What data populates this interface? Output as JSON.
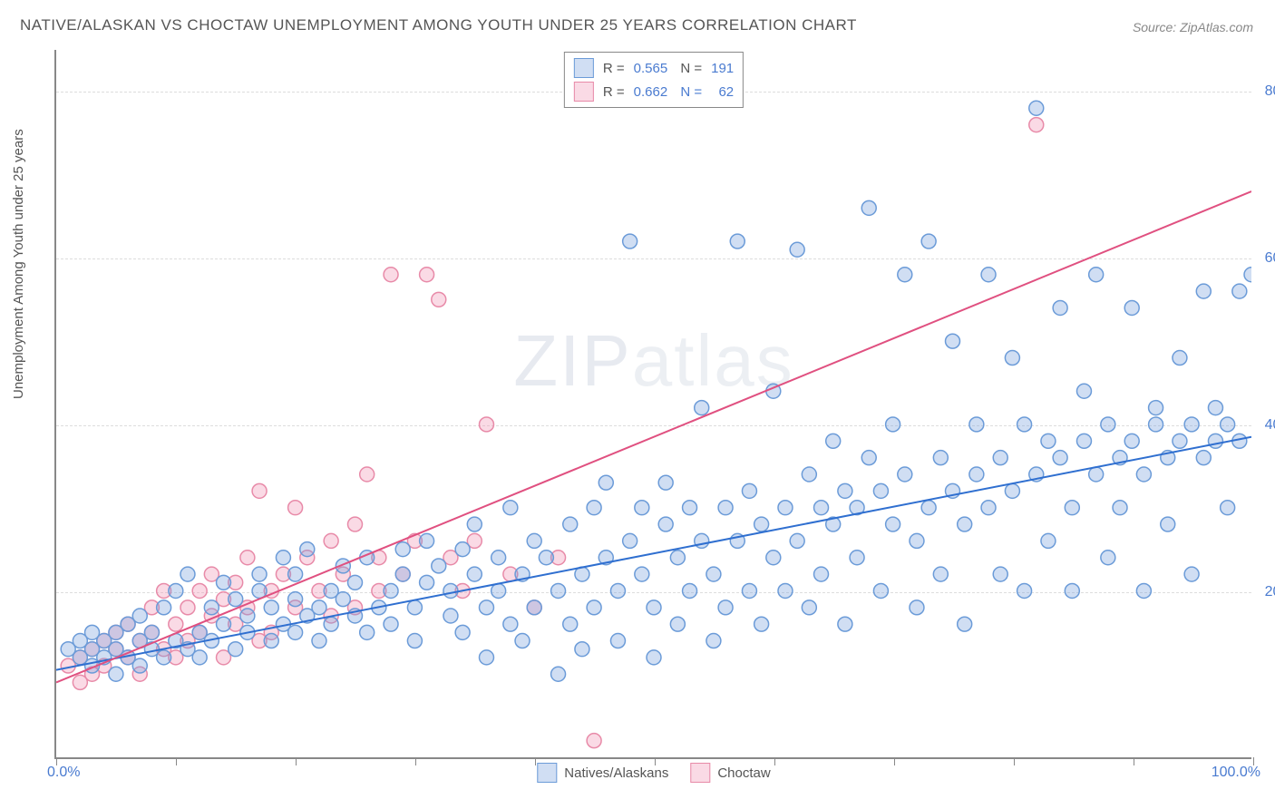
{
  "title": "NATIVE/ALASKAN VS CHOCTAW UNEMPLOYMENT AMONG YOUTH UNDER 25 YEARS CORRELATION CHART",
  "source": "Source: ZipAtlas.com",
  "ylabel": "Unemployment Among Youth under 25 years",
  "watermark": {
    "bold": "ZIP",
    "thin": "atlas"
  },
  "chart": {
    "type": "scatter",
    "background_color": "#ffffff",
    "grid_color": "#dddddd",
    "axis_color": "#888888",
    "text_color": "#555555",
    "value_color": "#4a7bd0",
    "xlim": [
      0,
      100
    ],
    "ylim": [
      0,
      85
    ],
    "xtick_positions": [
      0,
      10,
      20,
      30,
      40,
      50,
      60,
      70,
      80,
      90,
      100
    ],
    "ytick_positions": [
      20,
      40,
      60,
      80
    ],
    "ytick_labels": [
      "20.0%",
      "40.0%",
      "60.0%",
      "80.0%"
    ],
    "xaxis_label_left": "0.0%",
    "xaxis_label_right": "100.0%",
    "marker_radius": 8,
    "marker_stroke_width": 1.5,
    "line_width": 2,
    "series": [
      {
        "name": "Natives/Alaskans",
        "fill_color": "rgba(120,160,220,0.35)",
        "stroke_color": "#6b9bd8",
        "line_color": "#2f6fd0",
        "R": "0.565",
        "N": "191",
        "trend": {
          "x1": 0,
          "y1": 10.5,
          "x2": 100,
          "y2": 38.5
        },
        "points": [
          [
            1,
            13
          ],
          [
            2,
            12
          ],
          [
            2,
            14
          ],
          [
            3,
            11
          ],
          [
            3,
            13
          ],
          [
            3,
            15
          ],
          [
            4,
            12
          ],
          [
            4,
            14
          ],
          [
            5,
            10
          ],
          [
            5,
            13
          ],
          [
            5,
            15
          ],
          [
            6,
            12
          ],
          [
            6,
            16
          ],
          [
            7,
            11
          ],
          [
            7,
            14
          ],
          [
            7,
            17
          ],
          [
            8,
            13
          ],
          [
            8,
            15
          ],
          [
            9,
            12
          ],
          [
            9,
            18
          ],
          [
            10,
            14
          ],
          [
            10,
            20
          ],
          [
            11,
            13
          ],
          [
            11,
            22
          ],
          [
            12,
            15
          ],
          [
            12,
            12
          ],
          [
            13,
            18
          ],
          [
            13,
            14
          ],
          [
            14,
            16
          ],
          [
            14,
            21
          ],
          [
            15,
            13
          ],
          [
            15,
            19
          ],
          [
            16,
            17
          ],
          [
            16,
            15
          ],
          [
            17,
            20
          ],
          [
            17,
            22
          ],
          [
            18,
            14
          ],
          [
            18,
            18
          ],
          [
            19,
            16
          ],
          [
            19,
            24
          ],
          [
            20,
            15
          ],
          [
            20,
            19
          ],
          [
            20,
            22
          ],
          [
            21,
            17
          ],
          [
            21,
            25
          ],
          [
            22,
            18
          ],
          [
            22,
            14
          ],
          [
            23,
            20
          ],
          [
            23,
            16
          ],
          [
            24,
            19
          ],
          [
            24,
            23
          ],
          [
            25,
            17
          ],
          [
            25,
            21
          ],
          [
            26,
            15
          ],
          [
            26,
            24
          ],
          [
            27,
            18
          ],
          [
            28,
            20
          ],
          [
            28,
            16
          ],
          [
            29,
            22
          ],
          [
            29,
            25
          ],
          [
            30,
            18
          ],
          [
            30,
            14
          ],
          [
            31,
            21
          ],
          [
            31,
            26
          ],
          [
            32,
            23
          ],
          [
            33,
            17
          ],
          [
            33,
            20
          ],
          [
            34,
            25
          ],
          [
            34,
            15
          ],
          [
            35,
            22
          ],
          [
            35,
            28
          ],
          [
            36,
            18
          ],
          [
            36,
            12
          ],
          [
            37,
            24
          ],
          [
            37,
            20
          ],
          [
            38,
            16
          ],
          [
            38,
            30
          ],
          [
            39,
            22
          ],
          [
            39,
            14
          ],
          [
            40,
            26
          ],
          [
            40,
            18
          ],
          [
            41,
            24
          ],
          [
            42,
            20
          ],
          [
            42,
            10
          ],
          [
            43,
            28
          ],
          [
            43,
            16
          ],
          [
            44,
            22
          ],
          [
            44,
            13
          ],
          [
            45,
            30
          ],
          [
            45,
            18
          ],
          [
            46,
            24
          ],
          [
            46,
            33
          ],
          [
            47,
            20
          ],
          [
            47,
            14
          ],
          [
            48,
            26
          ],
          [
            48,
            62
          ],
          [
            49,
            22
          ],
          [
            49,
            30
          ],
          [
            50,
            18
          ],
          [
            50,
            12
          ],
          [
            51,
            28
          ],
          [
            51,
            33
          ],
          [
            52,
            24
          ],
          [
            52,
            16
          ],
          [
            53,
            30
          ],
          [
            53,
            20
          ],
          [
            54,
            26
          ],
          [
            54,
            42
          ],
          [
            55,
            22
          ],
          [
            55,
            14
          ],
          [
            56,
            30
          ],
          [
            56,
            18
          ],
          [
            57,
            26
          ],
          [
            57,
            62
          ],
          [
            58,
            32
          ],
          [
            58,
            20
          ],
          [
            59,
            28
          ],
          [
            59,
            16
          ],
          [
            60,
            24
          ],
          [
            60,
            44
          ],
          [
            61,
            30
          ],
          [
            61,
            20
          ],
          [
            62,
            26
          ],
          [
            62,
            61
          ],
          [
            63,
            34
          ],
          [
            63,
            18
          ],
          [
            64,
            30
          ],
          [
            64,
            22
          ],
          [
            65,
            28
          ],
          [
            65,
            38
          ],
          [
            66,
            32
          ],
          [
            66,
            16
          ],
          [
            67,
            30
          ],
          [
            67,
            24
          ],
          [
            68,
            36
          ],
          [
            68,
            66
          ],
          [
            69,
            32
          ],
          [
            69,
            20
          ],
          [
            70,
            28
          ],
          [
            70,
            40
          ],
          [
            71,
            34
          ],
          [
            71,
            58
          ],
          [
            72,
            26
          ],
          [
            72,
            18
          ],
          [
            73,
            30
          ],
          [
            73,
            62
          ],
          [
            74,
            36
          ],
          [
            74,
            22
          ],
          [
            75,
            32
          ],
          [
            75,
            50
          ],
          [
            76,
            28
          ],
          [
            76,
            16
          ],
          [
            77,
            34
          ],
          [
            77,
            40
          ],
          [
            78,
            30
          ],
          [
            78,
            58
          ],
          [
            79,
            36
          ],
          [
            79,
            22
          ],
          [
            80,
            32
          ],
          [
            80,
            48
          ],
          [
            81,
            40
          ],
          [
            81,
            20
          ],
          [
            82,
            34
          ],
          [
            82,
            78
          ],
          [
            83,
            38
          ],
          [
            83,
            26
          ],
          [
            84,
            36
          ],
          [
            84,
            54
          ],
          [
            85,
            30
          ],
          [
            85,
            20
          ],
          [
            86,
            38
          ],
          [
            86,
            44
          ],
          [
            87,
            34
          ],
          [
            87,
            58
          ],
          [
            88,
            40
          ],
          [
            88,
            24
          ],
          [
            89,
            36
          ],
          [
            89,
            30
          ],
          [
            90,
            38
          ],
          [
            90,
            54
          ],
          [
            91,
            34
          ],
          [
            91,
            20
          ],
          [
            92,
            40
          ],
          [
            92,
            42
          ],
          [
            93,
            36
          ],
          [
            93,
            28
          ],
          [
            94,
            38
          ],
          [
            94,
            48
          ],
          [
            95,
            40
          ],
          [
            95,
            22
          ],
          [
            96,
            36
          ],
          [
            96,
            56
          ],
          [
            97,
            38
          ],
          [
            97,
            42
          ],
          [
            98,
            40
          ],
          [
            98,
            30
          ],
          [
            99,
            56
          ],
          [
            99,
            38
          ],
          [
            100,
            58
          ]
        ]
      },
      {
        "name": "Choctaw",
        "fill_color": "rgba(240,150,180,0.35)",
        "stroke_color": "#e88aa8",
        "line_color": "#e05080",
        "R": "0.662",
        "N": "62",
        "trend": {
          "x1": 0,
          "y1": 9,
          "x2": 100,
          "y2": 68
        },
        "points": [
          [
            1,
            11
          ],
          [
            2,
            12
          ],
          [
            2,
            9
          ],
          [
            3,
            13
          ],
          [
            3,
            10
          ],
          [
            4,
            14
          ],
          [
            4,
            11
          ],
          [
            5,
            13
          ],
          [
            5,
            15
          ],
          [
            6,
            12
          ],
          [
            6,
            16
          ],
          [
            7,
            14
          ],
          [
            7,
            10
          ],
          [
            8,
            15
          ],
          [
            8,
            18
          ],
          [
            9,
            13
          ],
          [
            9,
            20
          ],
          [
            10,
            16
          ],
          [
            10,
            12
          ],
          [
            11,
            18
          ],
          [
            11,
            14
          ],
          [
            12,
            20
          ],
          [
            12,
            15
          ],
          [
            13,
            17
          ],
          [
            13,
            22
          ],
          [
            14,
            19
          ],
          [
            14,
            12
          ],
          [
            15,
            21
          ],
          [
            15,
            16
          ],
          [
            16,
            18
          ],
          [
            16,
            24
          ],
          [
            17,
            14
          ],
          [
            17,
            32
          ],
          [
            18,
            20
          ],
          [
            18,
            15
          ],
          [
            19,
            22
          ],
          [
            20,
            18
          ],
          [
            20,
            30
          ],
          [
            21,
            24
          ],
          [
            22,
            20
          ],
          [
            23,
            26
          ],
          [
            23,
            17
          ],
          [
            24,
            22
          ],
          [
            25,
            28
          ],
          [
            25,
            18
          ],
          [
            26,
            34
          ],
          [
            27,
            24
          ],
          [
            27,
            20
          ],
          [
            28,
            58
          ],
          [
            29,
            22
          ],
          [
            30,
            26
          ],
          [
            31,
            58
          ],
          [
            32,
            55
          ],
          [
            33,
            24
          ],
          [
            34,
            20
          ],
          [
            35,
            26
          ],
          [
            36,
            40
          ],
          [
            38,
            22
          ],
          [
            40,
            18
          ],
          [
            42,
            24
          ],
          [
            45,
            2
          ],
          [
            82,
            76
          ]
        ]
      }
    ],
    "bottom_legend": [
      {
        "label": "Natives/Alaskans",
        "fill": "rgba(120,160,220,0.35)",
        "border": "#6b9bd8"
      },
      {
        "label": "Choctaw",
        "fill": "rgba(240,150,180,0.35)",
        "border": "#e88aa8"
      }
    ]
  }
}
